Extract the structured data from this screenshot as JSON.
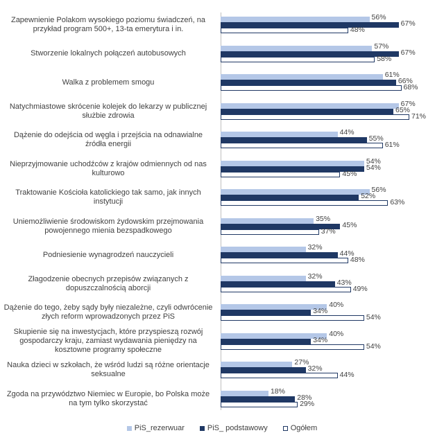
{
  "chart_data": {
    "type": "bar",
    "orientation": "horizontal",
    "categories": [
      "Zapewnienie Polakom wysokiego poziomu świadczeń, na przykład program 500+, 13-ta emerytura i in.",
      "Stworzenie lokalnych połączeń autobusowych",
      "Walka z problemem smogu",
      "Natychmiastowe skrócenie kolejek do lekarzy w publicznej służbie zdrowia",
      "Dążenie do odejścia od węgla i przejścia na odnawialne źródła energii",
      "Nieprzyjmowanie uchodźców z krajów odmiennych od nas kulturowo",
      "Traktowanie Kościoła katolickiego tak samo, jak innych instytucji",
      "Uniemożliwienie środowiskom żydowskim przejmowania powojennego mienia bezspadkowego",
      "Podniesienie wynagrodzeń nauczycieli",
      "Złagodzenie obecnych przepisów związanych z dopuszczalnością aborcji",
      "Dążenie do tego, żeby sądy były niezależne, czyli odwrócenie złych reform wprowadzonych przez PiS",
      "Skupienie się na inwestycjach, które przyspieszą rozwój gospodarczy kraju, zamiast wydawania pieniędzy na kosztowne programy społeczne",
      "Nauka dzieci w szkołach, że wśród ludzi są różne orientacje seksualne",
      "Zgoda na przywództwo Niemiec w Europie, bo Polska może na tym tylko skorzystać"
    ],
    "series": [
      {
        "name": "PiS_rezerwuar",
        "color": "#b4c7e7",
        "outline": "#b4c7e7",
        "values": [
          56,
          57,
          61,
          67,
          44,
          54,
          56,
          35,
          32,
          32,
          40,
          40,
          27,
          18
        ],
        "value_labels": [
          "56%",
          "57%",
          "61%",
          "67%",
          "44%",
          "54%",
          "56%",
          "35%",
          "32%",
          "32%",
          "40%",
          "40%",
          "27%",
          "18%"
        ]
      },
      {
        "name": "PiS_ podstawowy",
        "color": "#1f3864",
        "outline": "#1f3864",
        "values": [
          67,
          67,
          66,
          65,
          55,
          54,
          52,
          45,
          44,
          43,
          34,
          34,
          32,
          28
        ],
        "value_labels": [
          "67%",
          "67%",
          "66%",
          "65%",
          "55%",
          "54%",
          "52%",
          "45%",
          "44%",
          "43%",
          "34%",
          "34%",
          "32%",
          "28%"
        ]
      },
      {
        "name": "Ogółem",
        "color": "#ffffff",
        "outline": "#1f3864",
        "values": [
          48,
          58,
          68,
          71,
          61,
          45,
          63,
          37,
          48,
          49,
          54,
          54,
          44,
          29
        ],
        "value_labels": [
          "48%",
          "58%",
          "68%",
          "71%",
          "61%",
          "45%",
          "63%",
          "37%",
          "48%",
          "49%",
          "54%",
          "54%",
          "44%",
          "29%"
        ]
      }
    ],
    "legend": "bottom"
  }
}
